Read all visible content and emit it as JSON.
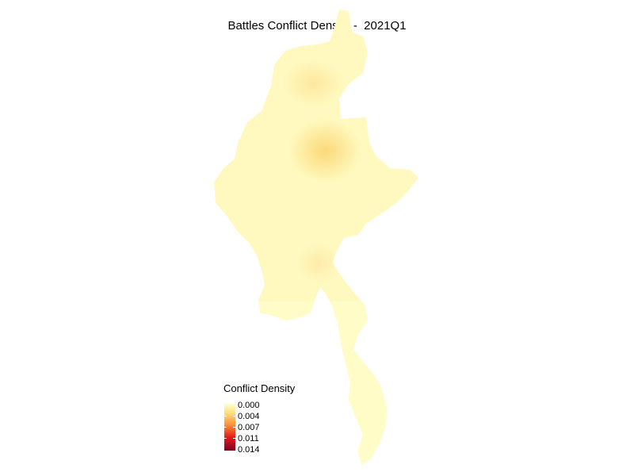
{
  "map": {
    "title": "Battles Conflict Density -  2021Q1",
    "fill_base": "#fffac0",
    "hotspot_color": "#fbd97a"
  },
  "legend": {
    "title": "Conflict Density",
    "ticks": [
      "0.000",
      "0.004",
      "0.007",
      "0.011",
      "0.014"
    ],
    "colors": [
      "#ffffcc",
      "#fed976",
      "#fd8d3c",
      "#e31a1c",
      "#800026"
    ]
  }
}
